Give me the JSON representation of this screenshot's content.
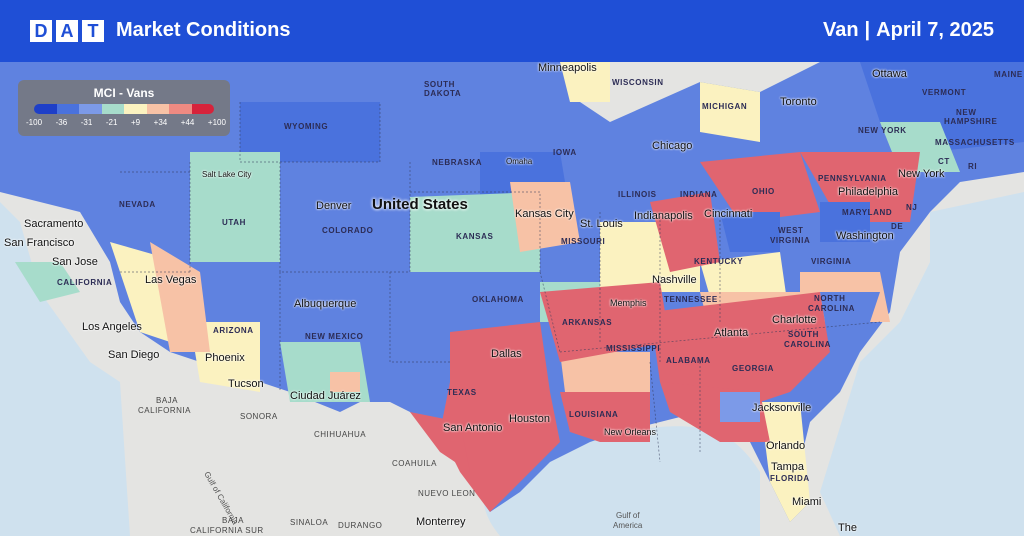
{
  "header": {
    "logo_letters": [
      "D",
      "A",
      "T"
    ],
    "title": "Market Conditions",
    "equipment": "Van",
    "separator": "|",
    "date": "April 7, 2025",
    "bg_color": "#1f4fd6"
  },
  "legend": {
    "title": "MCI - Vans",
    "ticks": [
      "-100",
      "-36",
      "-31",
      "-21",
      "+9",
      "+34",
      "+44",
      "+100"
    ],
    "colors": [
      "#1e3fc8",
      "#4a72dd",
      "#7c9ae8",
      "#a7dccb",
      "#fbf2c0",
      "#f7c2a6",
      "#ee8a82",
      "#d7233b"
    ]
  },
  "map": {
    "country_label": "United States",
    "states": [
      "SOUTH",
      "DAKOTA",
      "WYOMING",
      "NEBRASKA",
      "IOWA",
      "WISCONSIN",
      "MICHIGAN",
      "NEVADA",
      "UTAH",
      "COLORADO",
      "KANSAS",
      "MISSOURI",
      "ILLINOIS",
      "INDIANA",
      "OHIO",
      "PENNSYLVANIA",
      "NEW YORK",
      "VERMONT",
      "NEW",
      "HAMPSHIRE",
      "MASSACHUSETTS",
      "CT",
      "RI",
      "NJ",
      "DE",
      "MARYLAND",
      "WEST",
      "VIRGINIA",
      "VIRGINIA",
      "KENTUCKY",
      "TENNESSEE",
      "NORTH",
      "CAROLINA",
      "SOUTH",
      "CAROLINA",
      "GEORGIA",
      "ALABAMA",
      "MISSISSIPPI",
      "ARKANSAS",
      "LOUISIANA",
      "OKLAHOMA",
      "TEXAS",
      "NEW MEXICO",
      "ARIZONA",
      "CALIFORNIA",
      "FLORIDA",
      "MAINE"
    ],
    "cities": [
      "Minneapolis",
      "Ottawa",
      "Toronto",
      "Chicago",
      "Omaha",
      "Salt Lake City",
      "Denver",
      "Kansas City",
      "St. Louis",
      "Indianapolis",
      "Cincinnati",
      "Philadelphia",
      "New York",
      "Washington",
      "Sacramento",
      "San Francisco",
      "San Jose",
      "Las Vegas",
      "Los Angeles",
      "San Diego",
      "Phoenix",
      "Tucson",
      "Albuquerque",
      "Ciudad Juárez",
      "Memphis",
      "Nashville",
      "Charlotte",
      "Atlanta",
      "Dallas",
      "Houston",
      "San Antonio",
      "New Orleans",
      "Jacksonville",
      "Orlando",
      "Tampa",
      "Miami",
      "Monterrey",
      "The"
    ],
    "mexico": [
      "BAJA",
      "CALIFORNIA",
      "SONORA",
      "CHIHUAHUA",
      "COAHUILA",
      "NUEVO LEON",
      "BAJA",
      "CALIFORNIA SUR",
      "SINALOA",
      "DURANGO"
    ],
    "water": [
      "Gulf of",
      "America",
      "Gulf of California"
    ]
  }
}
